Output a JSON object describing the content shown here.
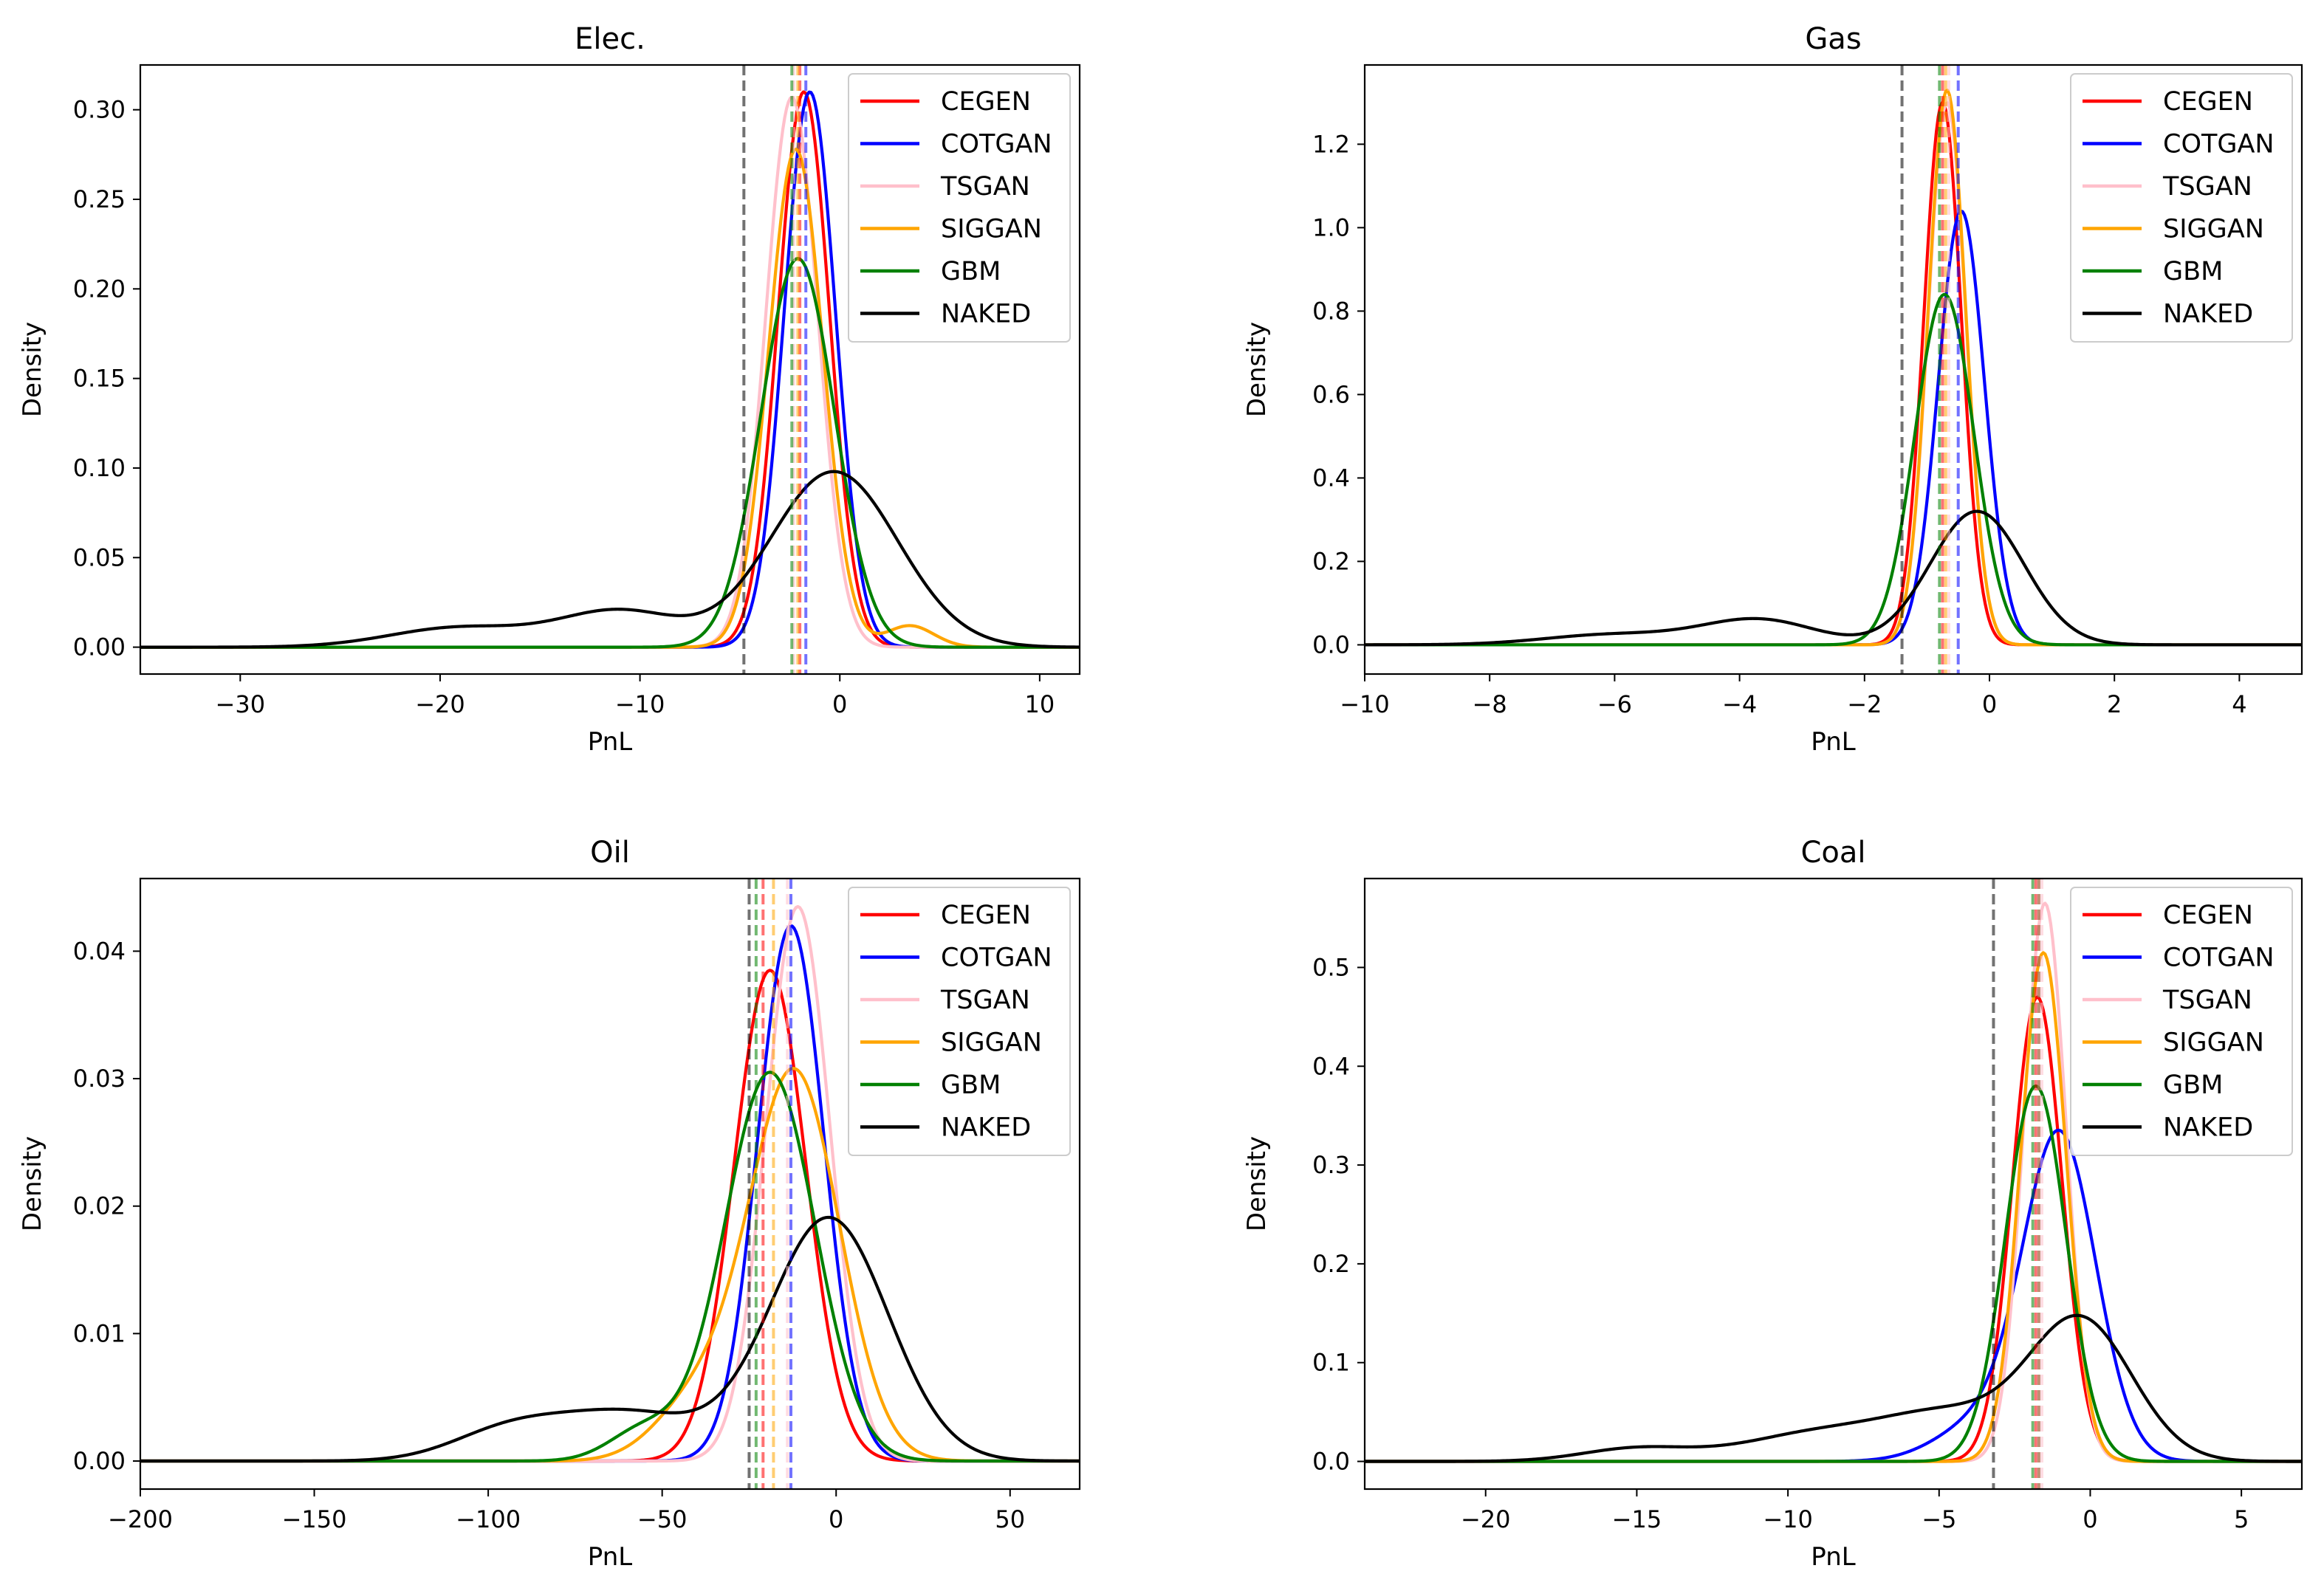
{
  "chart_data": [
    {
      "type": "line",
      "title": "Elec.",
      "xlabel": "PnL",
      "ylabel": "Density",
      "xlim": [
        -35,
        12
      ],
      "ylim": [
        -0.015,
        0.325
      ],
      "xticks": [
        -30,
        -20,
        -10,
        0,
        10
      ],
      "yticks": [
        0.0,
        0.05,
        0.1,
        0.15,
        0.2,
        0.25,
        0.3
      ],
      "ytick_decimals": 2,
      "legend_position": "top-right",
      "series": [
        {
          "name": "CEGEN",
          "color": "#ff0000",
          "mean": -1.8,
          "sd": 1.28,
          "peak": 0.31,
          "vline": -2.0,
          "components": []
        },
        {
          "name": "COTGAN",
          "color": "#0000ff",
          "mean": -1.5,
          "sd": 1.28,
          "peak": 0.31,
          "vline": -1.7,
          "components": []
        },
        {
          "name": "TSGAN",
          "color": "#ffc0cb",
          "mean": -2.4,
          "sd": 1.3,
          "peak": 0.307,
          "vline": -2.3,
          "components": []
        },
        {
          "name": "SIGGAN",
          "color": "#ffa500",
          "mean": -2.2,
          "sd": 1.35,
          "peak": 0.278,
          "vline": -2.1,
          "components": [
            {
              "mean": 3.5,
              "sd": 1.2,
              "peak": 0.012
            }
          ]
        },
        {
          "name": "GBM",
          "color": "#008000",
          "mean": -2.1,
          "sd": 1.83,
          "peak": 0.217,
          "vline": -2.4,
          "components": []
        },
        {
          "name": "NAKED",
          "color": "#000000",
          "mean": -0.3,
          "sd": 3.2,
          "peak": 0.098,
          "vline": -4.8,
          "components": [
            {
              "mean": -11,
              "sd": 3.0,
              "peak": 0.02
            },
            {
              "mean": -19,
              "sd": 3.5,
              "peak": 0.011
            }
          ]
        }
      ]
    },
    {
      "type": "line",
      "title": "Gas",
      "xlabel": "PnL",
      "ylabel": "Density",
      "xlim": [
        -10,
        5
      ],
      "ylim": [
        -0.07,
        1.39
      ],
      "xticks": [
        -10,
        -8,
        -6,
        -4,
        -2,
        0,
        2,
        4
      ],
      "yticks": [
        0.0,
        0.2,
        0.4,
        0.6,
        0.8,
        1.0,
        1.2
      ],
      "ytick_decimals": 1,
      "legend_position": "top-right",
      "series": [
        {
          "name": "CEGEN",
          "color": "#ff0000",
          "mean": -0.75,
          "sd": 0.3,
          "peak": 1.3,
          "vline": -0.75,
          "components": []
        },
        {
          "name": "COTGAN",
          "color": "#0000ff",
          "mean": -0.45,
          "sd": 0.37,
          "peak": 1.04,
          "vline": -0.5,
          "components": []
        },
        {
          "name": "TSGAN",
          "color": "#ffc0cb",
          "mean": -0.68,
          "sd": 0.3,
          "peak": 1.3,
          "vline": -0.65,
          "components": []
        },
        {
          "name": "SIGGAN",
          "color": "#ffa500",
          "mean": -0.68,
          "sd": 0.3,
          "peak": 1.33,
          "vline": -0.7,
          "components": []
        },
        {
          "name": "GBM",
          "color": "#008000",
          "mean": -0.72,
          "sd": 0.47,
          "peak": 0.84,
          "vline": -0.8,
          "components": []
        },
        {
          "name": "NAKED",
          "color": "#000000",
          "mean": -0.2,
          "sd": 0.75,
          "peak": 0.32,
          "vline": -1.4,
          "components": [
            {
              "mean": -3.7,
              "sd": 0.9,
              "peak": 0.06
            },
            {
              "mean": -6.0,
              "sd": 1.1,
              "peak": 0.025
            }
          ]
        }
      ]
    },
    {
      "type": "line",
      "title": "Oil",
      "xlabel": "PnL",
      "ylabel": "Density",
      "xlim": [
        -200,
        70
      ],
      "ylim": [
        -0.0022,
        0.0457
      ],
      "xticks": [
        -200,
        -150,
        -100,
        -50,
        0,
        50
      ],
      "yticks": [
        0.0,
        0.01,
        0.02,
        0.03,
        0.04
      ],
      "ytick_decimals": 2,
      "legend_position": "top-right",
      "series": [
        {
          "name": "CEGEN",
          "color": "#ff0000",
          "mean": -19,
          "sd": 10.3,
          "peak": 0.0385,
          "vline": -21,
          "components": []
        },
        {
          "name": "COTGAN",
          "color": "#0000ff",
          "mean": -13,
          "sd": 9.5,
          "peak": 0.042,
          "vline": -13,
          "components": []
        },
        {
          "name": "TSGAN",
          "color": "#ffc0cb",
          "mean": -11,
          "sd": 9.2,
          "peak": 0.0435,
          "vline": -14,
          "components": []
        },
        {
          "name": "SIGGAN",
          "color": "#ffa500",
          "mean": -12,
          "sd": 13,
          "peak": 0.0305,
          "vline": -18,
          "components": [
            {
              "mean": -40,
              "sd": 12,
              "peak": 0.0045
            }
          ]
        },
        {
          "name": "GBM",
          "color": "#008000",
          "mean": -19,
          "sd": 13,
          "peak": 0.0305,
          "vline": -23,
          "components": [
            {
              "mean": -55,
              "sd": 10,
              "peak": 0.0025
            }
          ]
        },
        {
          "name": "NAKED",
          "color": "#000000",
          "mean": -2,
          "sd": 17,
          "peak": 0.019,
          "vline": -25,
          "components": [
            {
              "mean": -60,
              "sd": 22,
              "peak": 0.0038
            },
            {
              "mean": -95,
              "sd": 16,
              "peak": 0.002
            }
          ]
        }
      ]
    },
    {
      "type": "line",
      "title": "Coal",
      "xlabel": "PnL",
      "ylabel": "Density",
      "xlim": [
        -24,
        7
      ],
      "ylim": [
        -0.028,
        0.59
      ],
      "xticks": [
        -20,
        -15,
        -10,
        -5,
        0,
        5
      ],
      "yticks": [
        0.0,
        0.1,
        0.2,
        0.3,
        0.4,
        0.5
      ],
      "ytick_decimals": 1,
      "legend_position": "top-right",
      "series": [
        {
          "name": "CEGEN",
          "color": "#ff0000",
          "mean": -1.75,
          "sd": 0.82,
          "peak": 0.47,
          "vline": -1.8,
          "components": []
        },
        {
          "name": "COTGAN",
          "color": "#0000ff",
          "mean": -1.0,
          "sd": 1.2,
          "peak": 0.325,
          "vline": -1.7,
          "components": [
            {
              "mean": -3.5,
              "sd": 1.5,
              "peak": 0.04
            }
          ]
        },
        {
          "name": "TSGAN",
          "color": "#ffc0cb",
          "mean": -1.5,
          "sd": 0.7,
          "peak": 0.565,
          "vline": -1.6,
          "components": []
        },
        {
          "name": "SIGGAN",
          "color": "#ffa500",
          "mean": -1.55,
          "sd": 0.75,
          "peak": 0.515,
          "vline": -1.7,
          "components": []
        },
        {
          "name": "GBM",
          "color": "#008000",
          "mean": -1.8,
          "sd": 1.0,
          "peak": 0.38,
          "vline": -1.9,
          "components": []
        },
        {
          "name": "NAKED",
          "color": "#000000",
          "mean": -0.3,
          "sd": 1.7,
          "peak": 0.14,
          "vline": -3.2,
          "components": [
            {
              "mean": -4.5,
              "sd": 2.2,
              "peak": 0.045
            },
            {
              "mean": -9,
              "sd": 2.5,
              "peak": 0.028
            },
            {
              "mean": -15,
              "sd": 1.8,
              "peak": 0.013
            }
          ]
        }
      ]
    }
  ]
}
